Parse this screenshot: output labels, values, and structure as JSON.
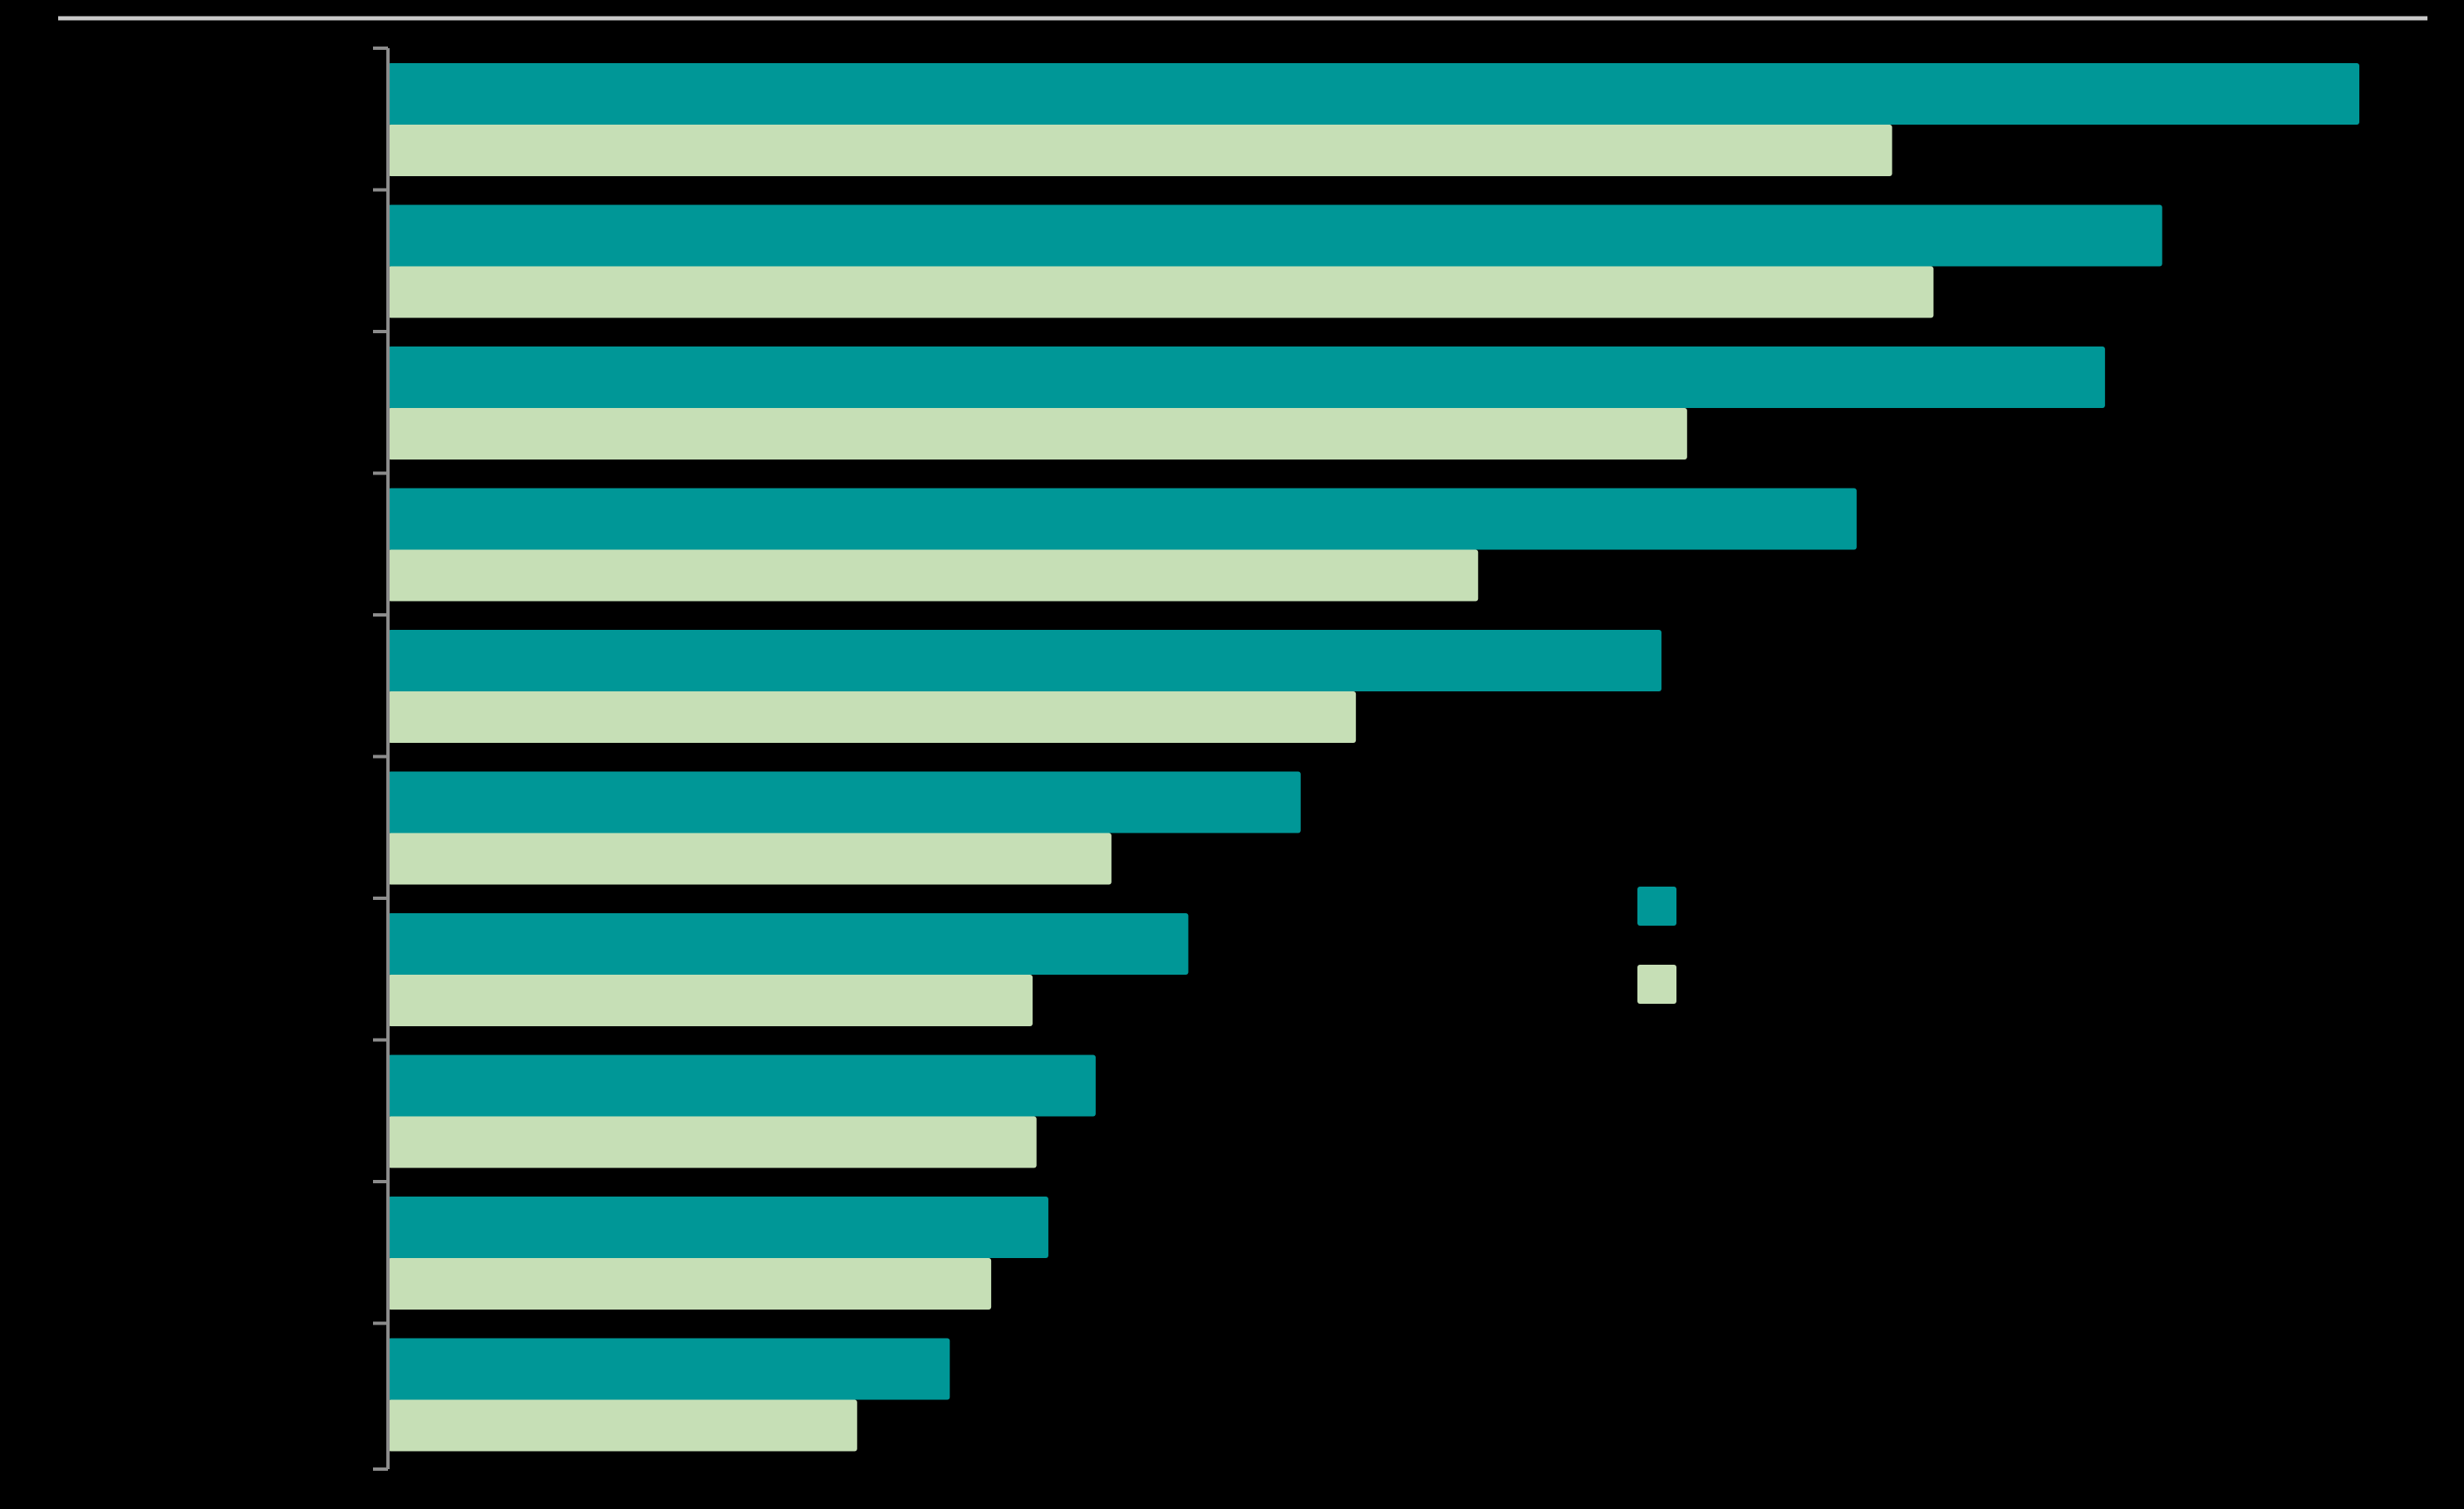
{
  "chart_data": {
    "type": "bar",
    "orientation": "horizontal",
    "categories": [
      "",
      "",
      "",
      "",
      "",
      "",
      "",
      "",
      "",
      ""
    ],
    "series": [
      {
        "values": [
          100,
          90,
          87.1,
          74.5,
          64.6,
          46.3,
          40.6,
          35.9,
          33.5,
          28.5
        ]
      },
      {
        "values": [
          76.3,
          78.4,
          65.9,
          55.3,
          49.1,
          36.7,
          32.7,
          32.9,
          30.6,
          23.8
        ]
      }
    ],
    "xlim": [
      0,
      100
    ],
    "grid": false,
    "legend_position": "center-right",
    "colors": {
      "background": "#000000",
      "series_1": "#009797",
      "series_2": "#c6dfb6",
      "axis": "#8c8c8c",
      "top_rule": "#c8c8c8"
    }
  }
}
